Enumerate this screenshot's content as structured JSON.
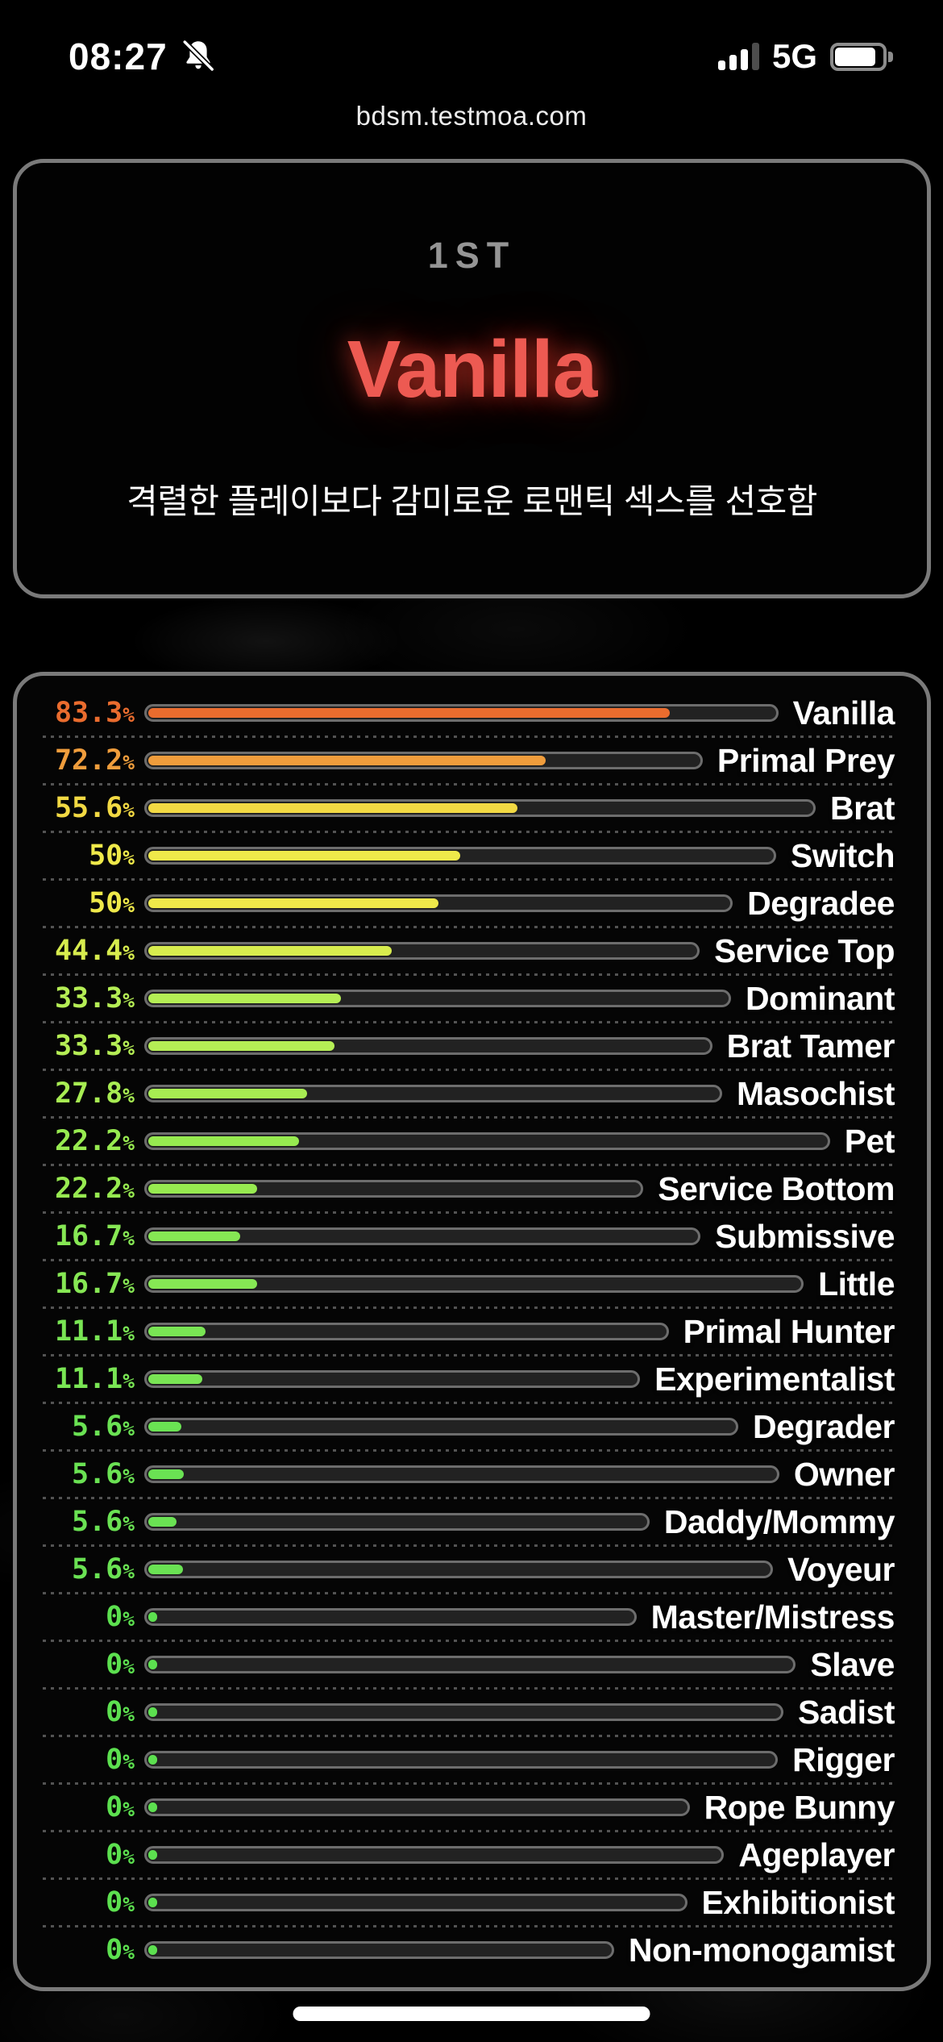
{
  "status_bar": {
    "time": "08:27",
    "network": "5G"
  },
  "browser": {
    "url": "bdsm.testmoa.com"
  },
  "hero": {
    "rank": "1ST",
    "title": "Vanilla",
    "title_color": "#ed5a52",
    "description": "격렬한 플레이보다 감미로운 로맨틱 섹스를 선호함"
  },
  "results": {
    "unit": "%",
    "items": [
      {
        "label": "Vanilla",
        "value": "83.3",
        "pct": 83.3,
        "color": "#ea6c2e"
      },
      {
        "label": "Primal Prey",
        "value": "72.2",
        "pct": 72.2,
        "color": "#f09d3c"
      },
      {
        "label": "Brat",
        "value": "55.6",
        "pct": 55.6,
        "color": "#f2d943"
      },
      {
        "label": "Switch",
        "value": "50",
        "pct": 50,
        "color": "#efe94a"
      },
      {
        "label": "Degradee",
        "value": "50",
        "pct": 50,
        "color": "#efe94a"
      },
      {
        "label": "Service Top",
        "value": "44.4",
        "pct": 44.4,
        "color": "#d7ec4e"
      },
      {
        "label": "Dominant",
        "value": "33.3",
        "pct": 33.3,
        "color": "#b5ee55"
      },
      {
        "label": "Brat Tamer",
        "value": "33.3",
        "pct": 33.3,
        "color": "#b5ee55"
      },
      {
        "label": "Masochist",
        "value": "27.8",
        "pct": 27.8,
        "color": "#a7ec52"
      },
      {
        "label": "Pet",
        "value": "22.2",
        "pct": 22.2,
        "color": "#97ea50"
      },
      {
        "label": "Service Bottom",
        "value": "22.2",
        "pct": 22.2,
        "color": "#97ea50"
      },
      {
        "label": "Submissive",
        "value": "16.7",
        "pct": 16.7,
        "color": "#86e754"
      },
      {
        "label": "Little",
        "value": "16.7",
        "pct": 16.7,
        "color": "#86e754"
      },
      {
        "label": "Primal Hunter",
        "value": "11.1",
        "pct": 11.1,
        "color": "#79e554"
      },
      {
        "label": "Experimentalist",
        "value": "11.1",
        "pct": 11.1,
        "color": "#79e554"
      },
      {
        "label": "Degrader",
        "value": "5.6",
        "pct": 5.6,
        "color": "#6ae253"
      },
      {
        "label": "Owner",
        "value": "5.6",
        "pct": 5.6,
        "color": "#6ae253"
      },
      {
        "label": "Daddy/Mommy",
        "value": "5.6",
        "pct": 5.6,
        "color": "#6ae253"
      },
      {
        "label": "Voyeur",
        "value": "5.6",
        "pct": 5.6,
        "color": "#6ae253"
      },
      {
        "label": "Master/Mistress",
        "value": "0",
        "pct": 0,
        "color": "#5ce04f"
      },
      {
        "label": "Slave",
        "value": "0",
        "pct": 0,
        "color": "#5ce04f"
      },
      {
        "label": "Sadist",
        "value": "0",
        "pct": 0,
        "color": "#5ce04f"
      },
      {
        "label": "Rigger",
        "value": "0",
        "pct": 0,
        "color": "#5ce04f"
      },
      {
        "label": "Rope Bunny",
        "value": "0",
        "pct": 0,
        "color": "#5ce04f"
      },
      {
        "label": "Ageplayer",
        "value": "0",
        "pct": 0,
        "color": "#5ce04f"
      },
      {
        "label": "Exhibitionist",
        "value": "0",
        "pct": 0,
        "color": "#5ce04f"
      },
      {
        "label": "Non-monogamist",
        "value": "0",
        "pct": 0,
        "color": "#5ce04f"
      }
    ]
  },
  "chart_data": {
    "type": "bar",
    "orientation": "horizontal",
    "categories": [
      "Vanilla",
      "Primal Prey",
      "Brat",
      "Switch",
      "Degradee",
      "Service Top",
      "Dominant",
      "Brat Tamer",
      "Masochist",
      "Pet",
      "Service Bottom",
      "Submissive",
      "Little",
      "Primal Hunter",
      "Experimentalist",
      "Degrader",
      "Owner",
      "Daddy/Mommy",
      "Voyeur",
      "Master/Mistress",
      "Slave",
      "Sadist",
      "Rigger",
      "Rope Bunny",
      "Ageplayer",
      "Exhibitionist",
      "Non-monogamist"
    ],
    "values": [
      83.3,
      72.2,
      55.6,
      50,
      50,
      44.4,
      33.3,
      33.3,
      27.8,
      22.2,
      22.2,
      16.7,
      16.7,
      11.1,
      11.1,
      5.6,
      5.6,
      5.6,
      5.6,
      0,
      0,
      0,
      0,
      0,
      0,
      0,
      0
    ],
    "title": "",
    "xlabel": "",
    "ylabel": "",
    "xlim": [
      0,
      100
    ],
    "grid": false,
    "legend": false
  }
}
